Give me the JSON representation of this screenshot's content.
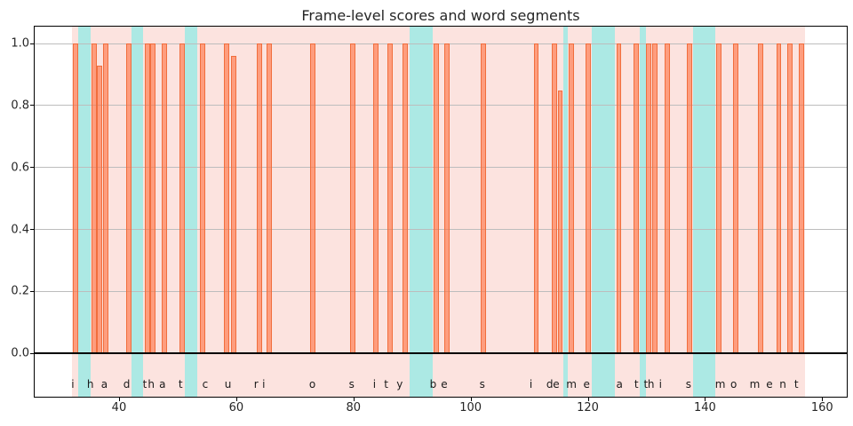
{
  "chart_data": {
    "type": "bar",
    "title": "Frame-level scores and word segments",
    "xlabel": "",
    "ylabel": "",
    "xlim": [
      25.6,
      164.2
    ],
    "ylim": [
      -0.14,
      1.055
    ],
    "x_ticks": [
      {
        "v": 40,
        "label": "40"
      },
      {
        "v": 60,
        "label": "60"
      },
      {
        "v": 80,
        "label": "80"
      },
      {
        "v": 100,
        "label": "100"
      },
      {
        "v": 120,
        "label": "120"
      },
      {
        "v": 140,
        "label": "140"
      },
      {
        "v": 160,
        "label": "160"
      }
    ],
    "y_ticks": [
      {
        "v": 0.0,
        "label": "0.0"
      },
      {
        "v": 0.2,
        "label": "0.2"
      },
      {
        "v": 0.4,
        "label": "0.4"
      },
      {
        "v": 0.6,
        "label": "0.6"
      },
      {
        "v": 0.8,
        "label": "0.8"
      },
      {
        "v": 1.0,
        "label": "1.0"
      }
    ],
    "grid": "horizontal",
    "legend": "none",
    "bar_width": 0.9,
    "bars": [
      {
        "x": 32.6,
        "score": 1.0
      },
      {
        "x": 35.7,
        "score": 1.0
      },
      {
        "x": 36.7,
        "score": 0.93
      },
      {
        "x": 37.7,
        "score": 1.0
      },
      {
        "x": 41.7,
        "score": 1.0
      },
      {
        "x": 44.8,
        "score": 1.0
      },
      {
        "x": 45.8,
        "score": 1.0
      },
      {
        "x": 47.8,
        "score": 1.0
      },
      {
        "x": 50.8,
        "score": 1.0
      },
      {
        "x": 54.2,
        "score": 1.0
      },
      {
        "x": 58.4,
        "score": 1.0
      },
      {
        "x": 59.6,
        "score": 0.96
      },
      {
        "x": 64.0,
        "score": 1.0
      },
      {
        "x": 65.7,
        "score": 1.0
      },
      {
        "x": 73.0,
        "score": 1.0
      },
      {
        "x": 79.9,
        "score": 1.0
      },
      {
        "x": 83.9,
        "score": 1.0
      },
      {
        "x": 86.2,
        "score": 1.0
      },
      {
        "x": 88.8,
        "score": 1.0
      },
      {
        "x": 94.1,
        "score": 1.0
      },
      {
        "x": 96.0,
        "score": 1.0
      },
      {
        "x": 102.2,
        "score": 1.0
      },
      {
        "x": 111.2,
        "score": 1.0
      },
      {
        "x": 114.3,
        "score": 1.0
      },
      {
        "x": 115.3,
        "score": 0.85
      },
      {
        "x": 117.2,
        "score": 1.0
      },
      {
        "x": 120.1,
        "score": 1.0
      },
      {
        "x": 125.3,
        "score": 1.0
      },
      {
        "x": 128.3,
        "score": 1.0
      },
      {
        "x": 130.4,
        "score": 1.0
      },
      {
        "x": 131.4,
        "score": 1.0
      },
      {
        "x": 133.5,
        "score": 1.0
      },
      {
        "x": 137.3,
        "score": 1.0
      },
      {
        "x": 142.3,
        "score": 1.0
      },
      {
        "x": 145.3,
        "score": 1.0
      },
      {
        "x": 149.5,
        "score": 1.0
      },
      {
        "x": 152.6,
        "score": 1.0
      },
      {
        "x": 154.5,
        "score": 1.0
      },
      {
        "x": 156.4,
        "score": 1.0
      }
    ],
    "utterance_span": {
      "start": 32.0,
      "end": 157.0
    },
    "highlight_spans": [
      {
        "start": 33.1,
        "end": 35.1
      },
      {
        "start": 42.2,
        "end": 44.1
      },
      {
        "start": 51.3,
        "end": 53.4
      },
      {
        "start": 89.6,
        "end": 93.5
      },
      {
        "start": 115.9,
        "end": 116.6
      },
      {
        "start": 120.7,
        "end": 124.6
      },
      {
        "start": 128.9,
        "end": 129.9
      },
      {
        "start": 138.0,
        "end": 141.7
      }
    ],
    "letters": [
      {
        "x": 32.1,
        "char": "i"
      },
      {
        "x": 35.1,
        "char": "h"
      },
      {
        "x": 37.5,
        "char": "a"
      },
      {
        "x": 41.3,
        "char": "d"
      },
      {
        "x": 44.4,
        "char": "t"
      },
      {
        "x": 45.5,
        "char": "h"
      },
      {
        "x": 47.4,
        "char": "a"
      },
      {
        "x": 50.5,
        "char": "t"
      },
      {
        "x": 54.7,
        "char": "c"
      },
      {
        "x": 58.6,
        "char": "u"
      },
      {
        "x": 63.4,
        "char": "r"
      },
      {
        "x": 64.7,
        "char": "i"
      },
      {
        "x": 73.0,
        "char": "o"
      },
      {
        "x": 79.7,
        "char": "s"
      },
      {
        "x": 83.6,
        "char": "i"
      },
      {
        "x": 85.6,
        "char": "t"
      },
      {
        "x": 87.9,
        "char": "y"
      },
      {
        "x": 93.6,
        "char": "b"
      },
      {
        "x": 95.5,
        "char": "e"
      },
      {
        "x": 102.0,
        "char": "s"
      },
      {
        "x": 110.3,
        "char": "i"
      },
      {
        "x": 113.5,
        "char": "d"
      },
      {
        "x": 114.6,
        "char": "e"
      },
      {
        "x": 117.2,
        "char": "m"
      },
      {
        "x": 119.8,
        "char": "e"
      },
      {
        "x": 125.4,
        "char": "a"
      },
      {
        "x": 128.3,
        "char": "t"
      },
      {
        "x": 129.9,
        "char": "t"
      },
      {
        "x": 130.8,
        "char": "h"
      },
      {
        "x": 132.4,
        "char": "i"
      },
      {
        "x": 137.2,
        "char": "s"
      },
      {
        "x": 142.6,
        "char": "m"
      },
      {
        "x": 144.9,
        "char": "o"
      },
      {
        "x": 148.5,
        "char": "m"
      },
      {
        "x": 151.0,
        "char": "e"
      },
      {
        "x": 153.3,
        "char": "n"
      },
      {
        "x": 155.6,
        "char": "t"
      }
    ],
    "letter_y": -0.1,
    "transcript": "i had that curiosity beside me at this moment",
    "colors": {
      "bar_fill": "rgba(255,115,66,0.62)",
      "bar_edge": "rgba(240,108,58,0.95)",
      "utterance_span": "#fce3df",
      "highlight_span": "#ace9e4",
      "grid": "#bdbdbd",
      "zero_line": "#000000",
      "spine": "#000000"
    }
  }
}
